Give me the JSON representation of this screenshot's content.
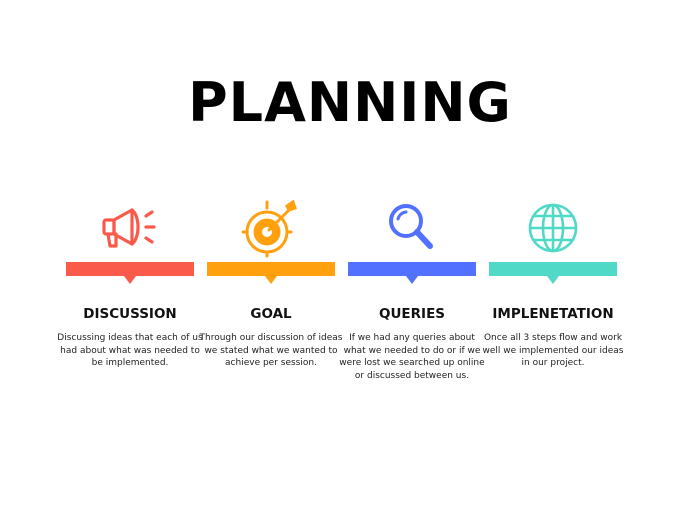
{
  "title": "PLANNING",
  "colors": {
    "discussion": "#fa5a4a",
    "goal": "#ffa00f",
    "queries": "#5271ff",
    "implementation": "#4fd9c6"
  },
  "steps": [
    {
      "heading": "DISCUSSION",
      "icon": "megaphone-icon",
      "description": "Discussing ideas that each of us had about what was needed to be implemented."
    },
    {
      "heading": "GOAL",
      "icon": "target-icon",
      "description": "Through our discussion of ideas we stated what we wanted to achieve per session."
    },
    {
      "heading": "QUERIES",
      "icon": "magnifier-icon",
      "description": "If we had any queries about what we needed to do or if we were lost we searched up online or discussed between us."
    },
    {
      "heading": "IMPLENETATION",
      "icon": "globe-icon",
      "description": "Once all 3 steps flow and work well we implemented our ideas in our project."
    }
  ]
}
